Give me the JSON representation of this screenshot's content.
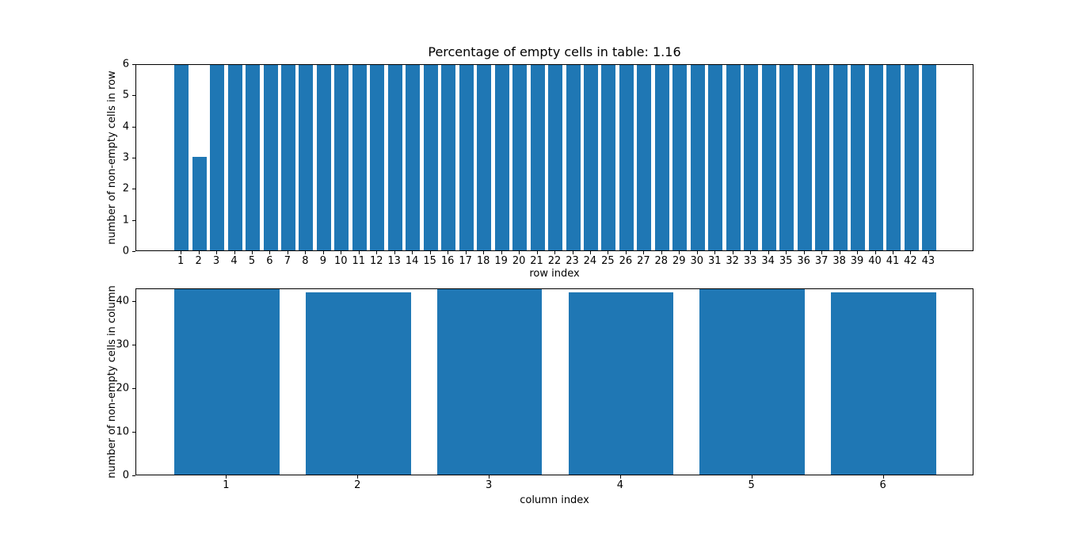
{
  "figure": {
    "background": "#ffffff",
    "bar_color": "#1f77b4",
    "spine_color": "#000000"
  },
  "chart_data": [
    {
      "type": "bar",
      "title": "Percentage of empty cells in table: 1.16",
      "xlabel": "row index",
      "ylabel": "number of non-empty cells in row",
      "categories": [
        1,
        2,
        3,
        4,
        5,
        6,
        7,
        8,
        9,
        10,
        11,
        12,
        13,
        14,
        15,
        16,
        17,
        18,
        19,
        20,
        21,
        22,
        23,
        24,
        25,
        26,
        27,
        28,
        29,
        30,
        31,
        32,
        33,
        34,
        35,
        36,
        37,
        38,
        39,
        40,
        41,
        42,
        43
      ],
      "values": [
        6,
        3,
        6,
        6,
        6,
        6,
        6,
        6,
        6,
        6,
        6,
        6,
        6,
        6,
        6,
        6,
        6,
        6,
        6,
        6,
        6,
        6,
        6,
        6,
        6,
        6,
        6,
        6,
        6,
        6,
        6,
        6,
        6,
        6,
        6,
        6,
        6,
        6,
        6,
        6,
        6,
        6,
        6
      ],
      "ylim": [
        0,
        6
      ],
      "yticks": [
        0,
        1,
        2,
        3,
        4,
        5,
        6
      ],
      "xlim": [
        -1.54,
        45.54
      ],
      "bar_width": 0.8,
      "grid": false,
      "legend": null
    },
    {
      "type": "bar",
      "title": "",
      "xlabel": "column index",
      "ylabel": "number of non-empty cells in column",
      "categories": [
        1,
        2,
        3,
        4,
        5,
        6
      ],
      "values": [
        43,
        42,
        43,
        42,
        43,
        42
      ],
      "ylim": [
        0,
        43
      ],
      "yticks": [
        0,
        10,
        20,
        30,
        40
      ],
      "xlim": [
        0.31,
        6.69
      ],
      "bar_width": 0.8,
      "grid": false,
      "legend": null
    }
  ]
}
